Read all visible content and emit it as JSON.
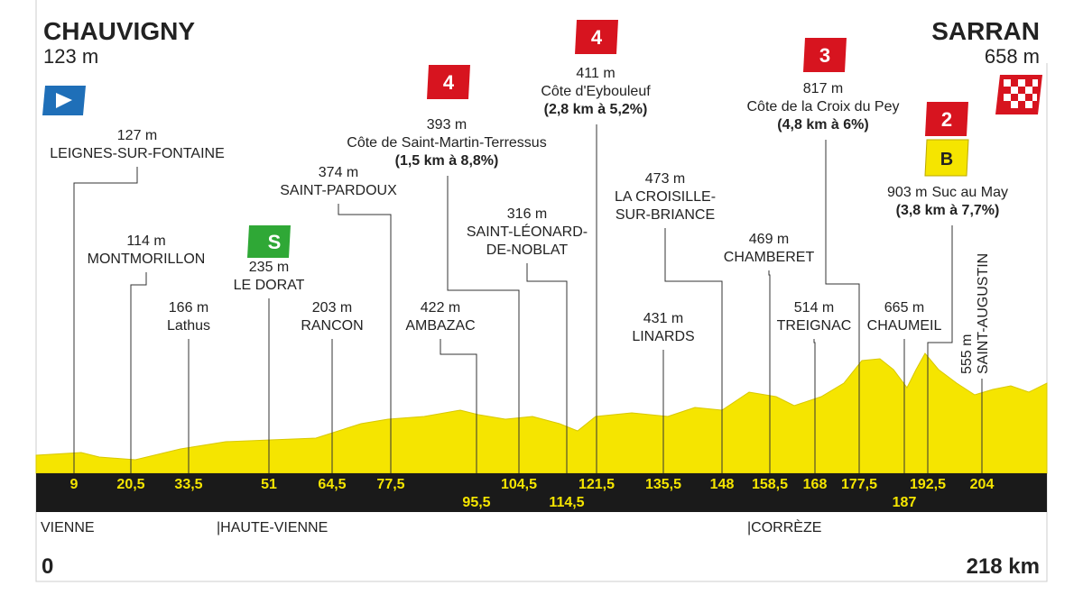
{
  "start": {
    "name": "CHAUVIGNY",
    "altitude": "123 m",
    "distance": "0"
  },
  "finish": {
    "name": "SARRAN",
    "altitude": "658 m",
    "distance": "218 km"
  },
  "waypoints": [
    {
      "km": "9",
      "altitude": "127 m",
      "name": [
        "LEIGNES-SUR-FONTAINE"
      ]
    },
    {
      "km": "20,5",
      "altitude": "114 m",
      "name": [
        "MONTMORILLON"
      ]
    },
    {
      "km": "33,5",
      "altitude": "166 m",
      "name": [
        "Lathus"
      ]
    },
    {
      "km": "51",
      "altitude": "235 m",
      "name": [
        "LE DORAT"
      ],
      "sprint": "S"
    },
    {
      "km": "64,5",
      "altitude": "203 m",
      "name": [
        "RANCON"
      ]
    },
    {
      "km": "77,5",
      "altitude": "374 m",
      "name": [
        "SAINT-PARDOUX"
      ]
    },
    {
      "km": "95,5",
      "altitude": "422 m",
      "name": [
        "AMBAZAC"
      ]
    },
    {
      "km": "104,5",
      "altitude": "393 m",
      "name": [
        "Côte de Saint-Martin-Terressus"
      ],
      "detail": "(1,5 km à 8,8%)",
      "category": "4"
    },
    {
      "km": "114,5",
      "altitude": "316 m",
      "name": [
        "SAINT-LÉONARD-",
        "DE-NOBLAT"
      ]
    },
    {
      "km": "121,5",
      "altitude": "411 m",
      "name": [
        "Côte d'Eybouleuf"
      ],
      "detail": "(2,8 km à 5,2%)",
      "category": "4"
    },
    {
      "km": "135,5",
      "altitude": "431 m",
      "name": [
        "LINARDS"
      ]
    },
    {
      "km": "148",
      "altitude": "473 m",
      "name": [
        "LA CROISILLE-",
        "SUR-BRIANCE"
      ]
    },
    {
      "km": "158,5",
      "altitude": "469 m",
      "name": [
        "CHAMBERET"
      ]
    },
    {
      "km": "168",
      "altitude": "514 m",
      "name": [
        "TREIGNAC"
      ]
    },
    {
      "km": "177,5",
      "altitude": "817 m",
      "name": [
        "Côte de la Croix du Pey"
      ],
      "detail": "(4,8 km à 6%)",
      "category": "3"
    },
    {
      "km": "187",
      "altitude": "665 m",
      "name": [
        "CHAUMEIL"
      ]
    },
    {
      "km": "192,5",
      "altitude": "903 m",
      "name": [
        "Suc au May"
      ],
      "detail": "(3,8 km à 7,7%)",
      "category": "2",
      "bonus": "B"
    },
    {
      "km": "204",
      "altitude": "555 m",
      "name": [
        "SAINT-AUGUSTIN"
      ]
    }
  ],
  "regions": [
    "VIENNE",
    "|HAUTE-VIENNE",
    "|CORRÈZE"
  ]
}
